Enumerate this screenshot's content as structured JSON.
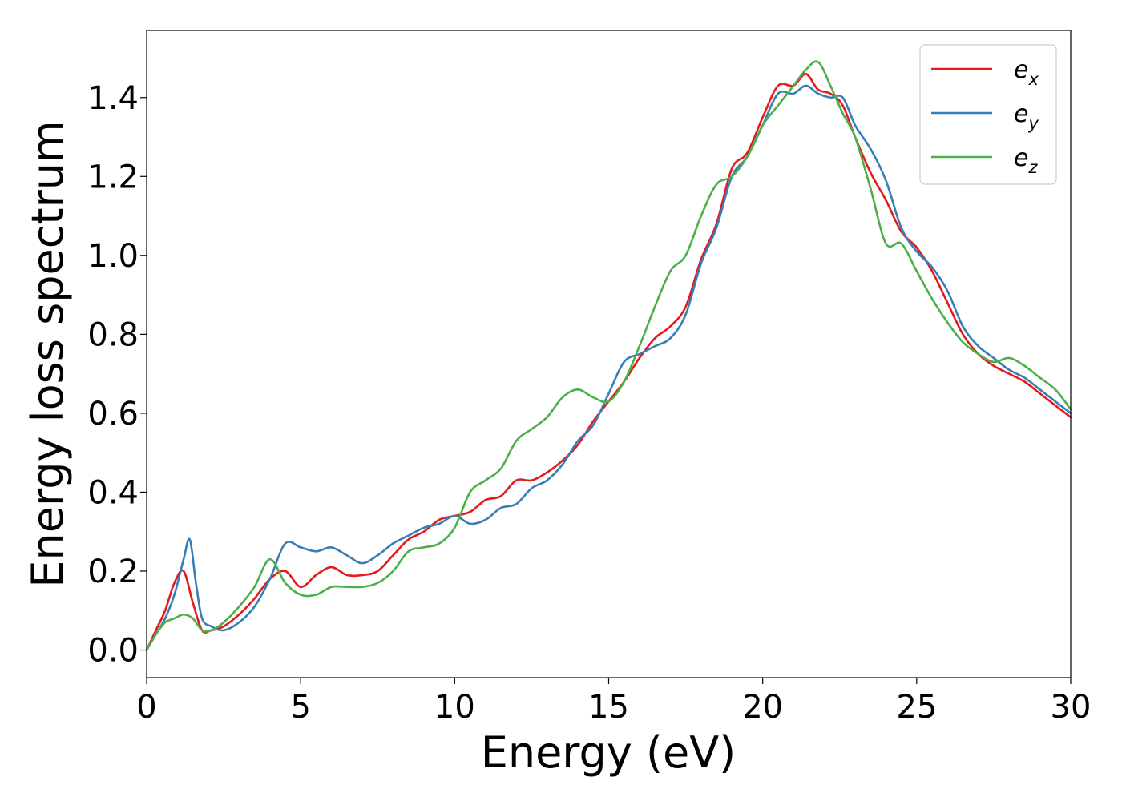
{
  "chart_data": {
    "type": "line",
    "title": "",
    "xlabel": "Energy (eV)",
    "ylabel": "Energy loss spectrum",
    "xlim": [
      0,
      30
    ],
    "ylim": [
      -0.07,
      1.57
    ],
    "xticks": [
      0,
      5,
      10,
      15,
      20,
      25,
      30
    ],
    "xtick_labels": [
      "0",
      "5",
      "10",
      "15",
      "20",
      "25",
      "30"
    ],
    "yticks": [
      0.0,
      0.2,
      0.4,
      0.6,
      0.8,
      1.0,
      1.2,
      1.4
    ],
    "ytick_labels": [
      "0.0",
      "0.2",
      "0.4",
      "0.6",
      "0.8",
      "1.0",
      "1.2",
      "1.4"
    ],
    "grid": false,
    "legend_position": "top-right",
    "series": [
      {
        "name": "e",
        "sub": "x",
        "color": "#e41a1c",
        "x": [
          0,
          0.3,
          0.6,
          0.9,
          1.2,
          1.5,
          1.8,
          2.1,
          2.5,
          3.0,
          3.5,
          4.0,
          4.5,
          5.0,
          5.5,
          6.0,
          6.5,
          7.0,
          7.5,
          8.0,
          8.5,
          9.0,
          9.5,
          10.0,
          10.5,
          11.0,
          11.5,
          12.0,
          12.5,
          13.0,
          13.5,
          14.0,
          14.5,
          15.0,
          15.5,
          16.0,
          16.5,
          17.0,
          17.5,
          18.0,
          18.5,
          19.0,
          19.5,
          20.0,
          20.5,
          21.0,
          21.4,
          21.8,
          22.2,
          22.6,
          23.0,
          23.5,
          24.0,
          24.5,
          25.0,
          25.5,
          26.0,
          26.5,
          27.0,
          27.5,
          28.0,
          28.5,
          29.0,
          29.5,
          30.0
        ],
        "y": [
          0.0,
          0.05,
          0.1,
          0.17,
          0.2,
          0.12,
          0.05,
          0.05,
          0.06,
          0.09,
          0.13,
          0.18,
          0.2,
          0.16,
          0.19,
          0.21,
          0.19,
          0.19,
          0.2,
          0.24,
          0.28,
          0.3,
          0.33,
          0.34,
          0.35,
          0.38,
          0.39,
          0.43,
          0.43,
          0.45,
          0.48,
          0.52,
          0.58,
          0.63,
          0.68,
          0.74,
          0.79,
          0.82,
          0.87,
          0.99,
          1.08,
          1.22,
          1.26,
          1.35,
          1.43,
          1.43,
          1.46,
          1.42,
          1.41,
          1.38,
          1.3,
          1.21,
          1.14,
          1.06,
          1.02,
          0.96,
          0.88,
          0.8,
          0.75,
          0.72,
          0.7,
          0.68,
          0.65,
          0.62,
          0.59
        ]
      },
      {
        "name": "e",
        "sub": "y",
        "color": "#377eb8",
        "x": [
          0,
          0.3,
          0.6,
          0.9,
          1.2,
          1.4,
          1.6,
          1.8,
          2.1,
          2.5,
          3.0,
          3.5,
          4.0,
          4.5,
          5.0,
          5.5,
          6.0,
          6.5,
          7.0,
          7.5,
          8.0,
          8.5,
          9.0,
          9.5,
          10.0,
          10.5,
          11.0,
          11.5,
          12.0,
          12.5,
          13.0,
          13.5,
          14.0,
          14.5,
          15.0,
          15.5,
          16.0,
          16.5,
          17.0,
          17.5,
          18.0,
          18.5,
          19.0,
          19.5,
          20.0,
          20.5,
          21.0,
          21.4,
          21.8,
          22.2,
          22.6,
          23.0,
          23.5,
          24.0,
          24.5,
          25.0,
          25.5,
          26.0,
          26.5,
          27.0,
          27.5,
          28.0,
          28.5,
          29.0,
          29.5,
          30.0
        ],
        "y": [
          0.0,
          0.04,
          0.08,
          0.14,
          0.23,
          0.28,
          0.17,
          0.08,
          0.06,
          0.05,
          0.07,
          0.11,
          0.18,
          0.27,
          0.26,
          0.25,
          0.26,
          0.24,
          0.22,
          0.24,
          0.27,
          0.29,
          0.31,
          0.32,
          0.34,
          0.32,
          0.33,
          0.36,
          0.37,
          0.41,
          0.43,
          0.47,
          0.53,
          0.57,
          0.65,
          0.73,
          0.75,
          0.77,
          0.79,
          0.85,
          0.98,
          1.07,
          1.2,
          1.25,
          1.33,
          1.41,
          1.41,
          1.43,
          1.41,
          1.4,
          1.4,
          1.33,
          1.27,
          1.19,
          1.07,
          1.01,
          0.97,
          0.91,
          0.82,
          0.77,
          0.74,
          0.71,
          0.69,
          0.66,
          0.63,
          0.6
        ]
      },
      {
        "name": "e",
        "sub": "z",
        "color": "#4daf4a",
        "x": [
          0,
          0.3,
          0.6,
          0.9,
          1.2,
          1.5,
          1.8,
          2.1,
          2.5,
          3.0,
          3.5,
          4.0,
          4.5,
          5.0,
          5.5,
          6.0,
          6.5,
          7.0,
          7.5,
          8.0,
          8.5,
          9.0,
          9.5,
          10.0,
          10.5,
          11.0,
          11.5,
          12.0,
          12.5,
          13.0,
          13.5,
          14.0,
          14.5,
          15.0,
          15.5,
          16.0,
          16.5,
          17.0,
          17.5,
          18.0,
          18.5,
          19.0,
          19.5,
          20.0,
          20.5,
          21.0,
          21.4,
          21.8,
          22.2,
          22.6,
          23.0,
          23.5,
          24.0,
          24.5,
          25.0,
          25.5,
          26.0,
          26.5,
          27.0,
          27.5,
          28.0,
          28.5,
          29.0,
          29.5,
          30.0
        ],
        "y": [
          0.0,
          0.04,
          0.07,
          0.08,
          0.09,
          0.08,
          0.05,
          0.05,
          0.07,
          0.11,
          0.16,
          0.23,
          0.17,
          0.14,
          0.14,
          0.16,
          0.16,
          0.16,
          0.17,
          0.2,
          0.25,
          0.26,
          0.27,
          0.31,
          0.4,
          0.43,
          0.46,
          0.53,
          0.56,
          0.59,
          0.64,
          0.66,
          0.64,
          0.63,
          0.68,
          0.77,
          0.87,
          0.96,
          1.0,
          1.1,
          1.18,
          1.2,
          1.25,
          1.33,
          1.38,
          1.43,
          1.47,
          1.49,
          1.43,
          1.36,
          1.3,
          1.17,
          1.03,
          1.03,
          0.96,
          0.89,
          0.83,
          0.78,
          0.75,
          0.73,
          0.74,
          0.72,
          0.69,
          0.66,
          0.61
        ]
      }
    ]
  }
}
